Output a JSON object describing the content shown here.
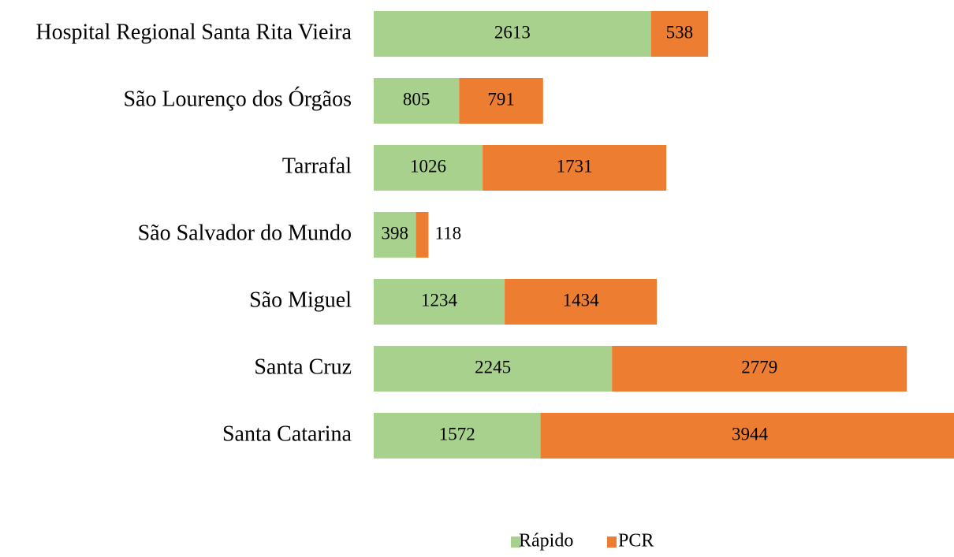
{
  "chart_data": {
    "type": "stacked_bar_horizontal",
    "categories": [
      "Hospital Regional Santa Rita Vieira",
      "São Lourenço dos Órgãos",
      "Tarrafal",
      "São Salvador do Mundo",
      "São Miguel",
      "Santa Cruz",
      "Santa Catarina"
    ],
    "series": [
      {
        "name": "Rápido",
        "color": "#a9d18e",
        "values": [
          2613,
          805,
          1026,
          398,
          1234,
          2245,
          1572
        ]
      },
      {
        "name": "PCR",
        "color": "#ed7d31",
        "values": [
          538,
          791,
          1731,
          118,
          1434,
          2779,
          3944
        ]
      }
    ],
    "legend": "bottom"
  }
}
